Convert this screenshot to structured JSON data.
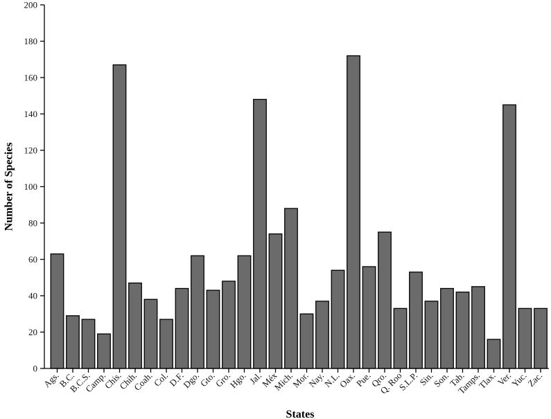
{
  "chart_data": {
    "type": "bar",
    "categories": [
      "Ags.",
      "B.C.",
      "B.C.S.",
      "Camp.",
      "Chis.",
      "Chih.",
      "Coah.",
      "Col.",
      "D.F.",
      "Dgo.",
      "Gto.",
      "Gro.",
      "Hgo.",
      "Jal.",
      "Méx",
      "Mich.",
      "Mor.",
      "Nay.",
      "N.L.",
      "Oax.",
      "Pue.",
      "Qro.",
      "Q. Roo",
      "S.L.P.",
      "Sin.",
      "Son.",
      "Tab.",
      "Tamps.",
      "Tlax.",
      "Ver.",
      "Yuc.",
      "Zac."
    ],
    "values": [
      63,
      29,
      27,
      19,
      167,
      47,
      38,
      27,
      44,
      62,
      43,
      48,
      62,
      148,
      74,
      88,
      30,
      37,
      54,
      172,
      56,
      75,
      33,
      53,
      37,
      44,
      42,
      45,
      16,
      145,
      33,
      33
    ],
    "xlabel": "States",
    "ylabel": "Number of Species",
    "ylim": [
      0,
      200
    ],
    "yticks": [
      0,
      20,
      40,
      60,
      80,
      100,
      120,
      140,
      160,
      180,
      200
    ],
    "grid": false,
    "colors": {
      "bar_fill": "#6b6b6b",
      "bar_stroke": "#000000"
    }
  }
}
